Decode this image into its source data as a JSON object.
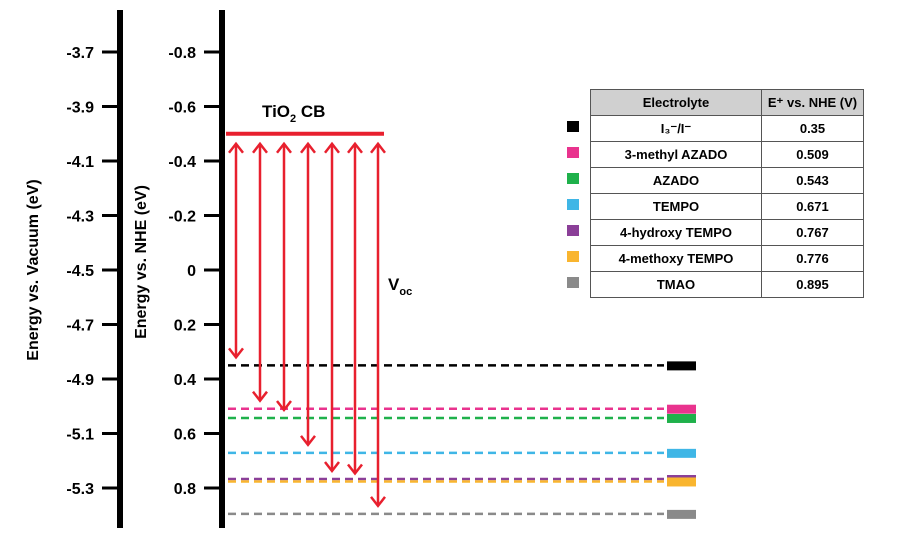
{
  "chart_data": {
    "type": "energy-level-diagram",
    "left_axis": {
      "label": "Energy vs. Vacuum (eV)",
      "ticks": [
        "-3.7",
        "-3.9",
        "-4.1",
        "-4.3",
        "-4.5",
        "-4.7",
        "-4.9",
        "-5.1",
        "-5.3"
      ]
    },
    "right_axis": {
      "label": "Energy vs. NHE (eV)",
      "ticks": [
        "-0.8",
        "-0.6",
        "-0.4",
        "-0.2",
        "0",
        "0.2",
        "0.4",
        "0.6",
        "0.8"
      ],
      "tick_values": [
        -0.8,
        -0.6,
        -0.4,
        -0.2,
        0,
        0.2,
        0.4,
        0.6,
        0.8
      ],
      "range": [
        -0.92,
        0.92
      ]
    },
    "conduction_band": {
      "label_main": "TiO",
      "label_sub": "2",
      "label_tail": " CB",
      "value": -0.5,
      "color": "#e8202e"
    },
    "voc": {
      "label_main": "V",
      "label_sub": "oc",
      "color": "#e8202e"
    },
    "table": {
      "headers": [
        "Electrolyte",
        "E⁺ vs. NHE (V)"
      ],
      "rows": [
        {
          "name": "I₃⁻/I⁻",
          "value": "0.35",
          "v": 0.35,
          "color": "#000000"
        },
        {
          "name": "3-methyl AZADO",
          "value": "0.509",
          "v": 0.509,
          "color": "#e9338e"
        },
        {
          "name": "AZADO",
          "value": "0.543",
          "v": 0.543,
          "color": "#1fb14b"
        },
        {
          "name": "TEMPO",
          "value": "0.671",
          "v": 0.671,
          "color": "#3fb6e6"
        },
        {
          "name": "4-hydroxy TEMPO",
          "value": "0.767",
          "v": 0.767,
          "color": "#8b3f98"
        },
        {
          "name": "4-methoxy TEMPO",
          "value": "0.776",
          "v": 0.776,
          "color": "#f9b52f"
        },
        {
          "name": "TMAO",
          "value": "0.895",
          "v": 0.895,
          "color": "#8a8a8a"
        }
      ]
    }
  }
}
